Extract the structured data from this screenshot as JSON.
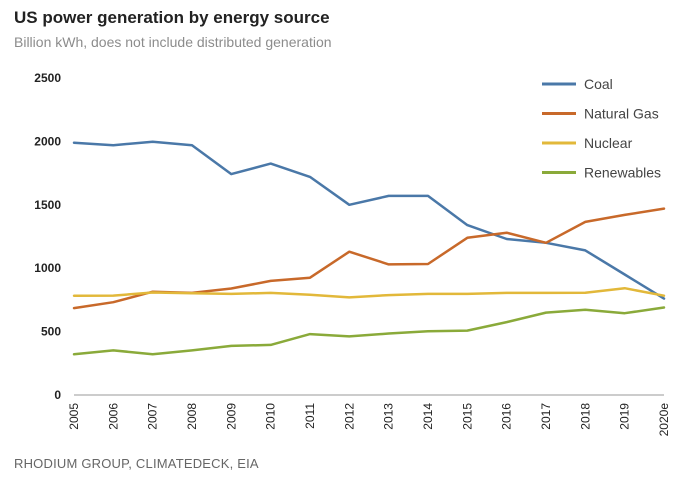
{
  "header": {
    "title": "US power generation by energy source",
    "subtitle": "Billion kWh, does not include distributed generation"
  },
  "footer": {
    "source": "RHODIUM GROUP, CLIMATEDECK, EIA"
  },
  "chart_data": {
    "type": "line",
    "title": "US power generation by energy source",
    "subtitle": "Billion kWh, does not include distributed generation",
    "xlabel": "",
    "ylabel": "",
    "ylim": [
      0,
      2500
    ],
    "yticks": [
      0,
      500,
      1000,
      1500,
      2000,
      2500
    ],
    "grid": false,
    "legend_position": "top-right",
    "x": [
      "2005",
      "2006",
      "2007",
      "2008",
      "2009",
      "2010",
      "2011",
      "2012",
      "2013",
      "2014",
      "2015",
      "2016",
      "2017",
      "2018",
      "2019",
      "2020e"
    ],
    "series": [
      {
        "name": "Coal",
        "color": "#4a78a8",
        "values": [
          1990,
          1970,
          1998,
          1970,
          1742,
          1825,
          1720,
          1500,
          1570,
          1570,
          1340,
          1230,
          1200,
          1140,
          950,
          760
        ]
      },
      {
        "name": "Natural Gas",
        "color": "#c8692a",
        "values": [
          685,
          732,
          815,
          805,
          840,
          900,
          925,
          1130,
          1030,
          1033,
          1240,
          1280,
          1200,
          1365,
          1420,
          1470
        ]
      },
      {
        "name": "Nuclear",
        "color": "#e2b83a",
        "values": [
          782,
          784,
          808,
          803,
          797,
          805,
          790,
          770,
          788,
          797,
          797,
          805,
          805,
          807,
          842,
          783
        ]
      },
      {
        "name": "Renewables",
        "color": "#8aaa3a",
        "values": [
          322,
          352,
          322,
          352,
          387,
          395,
          480,
          462,
          485,
          502,
          508,
          575,
          650,
          672,
          645,
          690
        ]
      }
    ]
  }
}
